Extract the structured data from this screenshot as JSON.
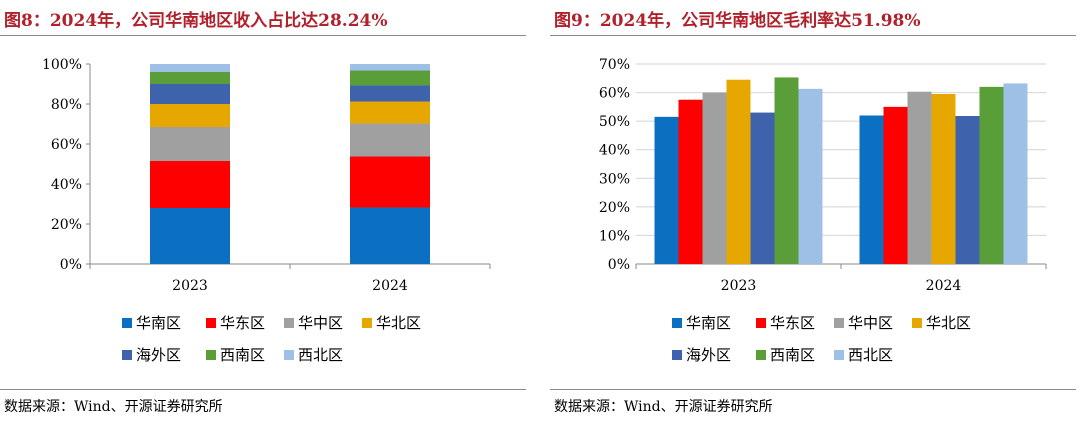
{
  "chart_data": [
    {
      "type": "bar",
      "stacked": true,
      "title": "图8：2024年，公司华南地区收入占比达28.24%",
      "source": "数据来源：Wind、开源证券研究所",
      "categories": [
        "2023",
        "2024"
      ],
      "ylim": [
        0,
        100
      ],
      "yticks": [
        "0%",
        "20%",
        "40%",
        "60%",
        "80%",
        "100%"
      ],
      "grid": false,
      "legend_position": "bottom",
      "series": [
        {
          "name": "华南区",
          "color": "#0b70c1",
          "values": [
            28.0,
            28.24
          ]
        },
        {
          "name": "华东区",
          "color": "#fe0000",
          "values": [
            23.5,
            25.5
          ]
        },
        {
          "name": "华中区",
          "color": "#a0a0a0",
          "values": [
            17.0,
            16.5
          ]
        },
        {
          "name": "华北区",
          "color": "#e6a800",
          "values": [
            11.5,
            11.0
          ]
        },
        {
          "name": "海外区",
          "color": "#3e62ac",
          "values": [
            10.0,
            8.0
          ]
        },
        {
          "name": "西南区",
          "color": "#5a9e3a",
          "values": [
            6.0,
            7.5
          ]
        },
        {
          "name": "西北区",
          "color": "#9fc0e6",
          "values": [
            4.0,
            3.26
          ]
        }
      ]
    },
    {
      "type": "bar",
      "title": "图9：2024年，公司华南地区毛利率达51.98%",
      "source": "数据来源：Wind、开源证券研究所",
      "categories": [
        "2023",
        "2024"
      ],
      "ylim": [
        0,
        70
      ],
      "yticks": [
        "0%",
        "10%",
        "20%",
        "30%",
        "40%",
        "50%",
        "60%",
        "70%"
      ],
      "grid": true,
      "legend_position": "bottom",
      "series": [
        {
          "name": "华南区",
          "color": "#0b70c1",
          "values": [
            51.5,
            51.98
          ]
        },
        {
          "name": "华东区",
          "color": "#fe0000",
          "values": [
            57.5,
            55.0
          ]
        },
        {
          "name": "华中区",
          "color": "#a0a0a0",
          "values": [
            60.0,
            60.3
          ]
        },
        {
          "name": "华北区",
          "color": "#e6a800",
          "values": [
            64.5,
            59.5
          ]
        },
        {
          "name": "海外区",
          "color": "#3e62ac",
          "values": [
            53.0,
            51.8
          ]
        },
        {
          "name": "西南区",
          "color": "#5a9e3a",
          "values": [
            65.3,
            62.0
          ]
        },
        {
          "name": "西北区",
          "color": "#9fc0e6",
          "values": [
            61.3,
            63.2
          ]
        }
      ]
    }
  ]
}
